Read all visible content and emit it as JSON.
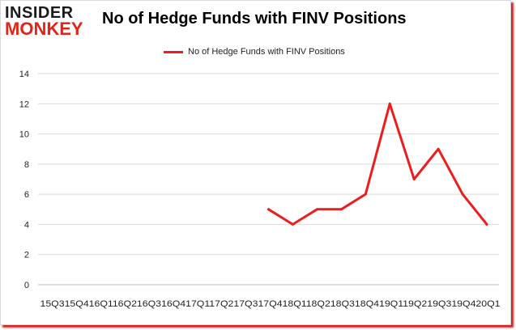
{
  "logo": {
    "top": "INSIDER",
    "bottom": "MONKEY"
  },
  "colors": {
    "series": "#ee1c1c",
    "grid": "#d9d9d9",
    "frame_shadow": "#cc1f1f",
    "logo_red": "#e2231a"
  },
  "chart_data": {
    "type": "line",
    "title": "No of Hedge Funds with FINV Positions",
    "xlabel": "",
    "ylabel": "",
    "ylim": [
      0,
      14
    ],
    "yticks": [
      0,
      2,
      4,
      6,
      8,
      10,
      12,
      14
    ],
    "grid": true,
    "legend_position": "top-center",
    "categories": [
      "15Q3",
      "15Q4",
      "16Q1",
      "16Q2",
      "16Q3",
      "16Q4",
      "17Q1",
      "17Q2",
      "17Q3",
      "17Q4",
      "18Q1",
      "18Q2",
      "18Q3",
      "18Q4",
      "19Q1",
      "19Q2",
      "19Q3",
      "19Q4",
      "20Q1"
    ],
    "x_tick_text": "15Q315Q416Q116Q216Q316Q417Q117Q217Q317Q418Q118Q218Q318Q419Q119Q219Q319Q420Q1",
    "series": [
      {
        "name": "No of Hedge Funds with FINV  Positions",
        "values": [
          null,
          null,
          null,
          null,
          null,
          null,
          null,
          null,
          null,
          5,
          4,
          5,
          5,
          6,
          12,
          7,
          9,
          6,
          4
        ]
      }
    ]
  }
}
